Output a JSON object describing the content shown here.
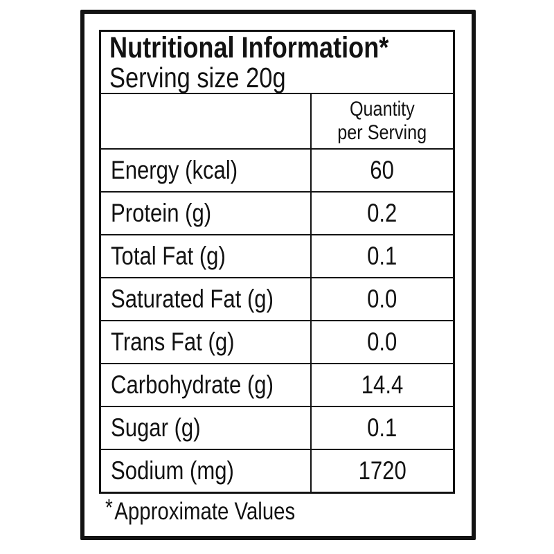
{
  "colors": {
    "text": "#121212",
    "border": "#121212",
    "background": "#ffffff"
  },
  "label": {
    "title": "Nutritional Information*",
    "serving_size": "Serving size 20g",
    "quantity_header_lines": [
      "Quantity",
      "per Serving"
    ],
    "rows": [
      {
        "label": "Energy (kcal)",
        "value": "60"
      },
      {
        "label": "Protein (g)",
        "value": "0.2"
      },
      {
        "label": "Total Fat (g)",
        "value": "0.1"
      },
      {
        "label": "Saturated Fat (g)",
        "value": "0.0"
      },
      {
        "label": "Trans Fat (g)",
        "value": "0.0"
      },
      {
        "label": "Carbohydrate (g)",
        "value": "14.4"
      },
      {
        "label": "Sugar (g)",
        "value": "0.1"
      },
      {
        "label": "Sodium (mg)",
        "value": "1720"
      }
    ],
    "footnote_asterisk": "*",
    "footnote_text": "Approximate Values"
  }
}
